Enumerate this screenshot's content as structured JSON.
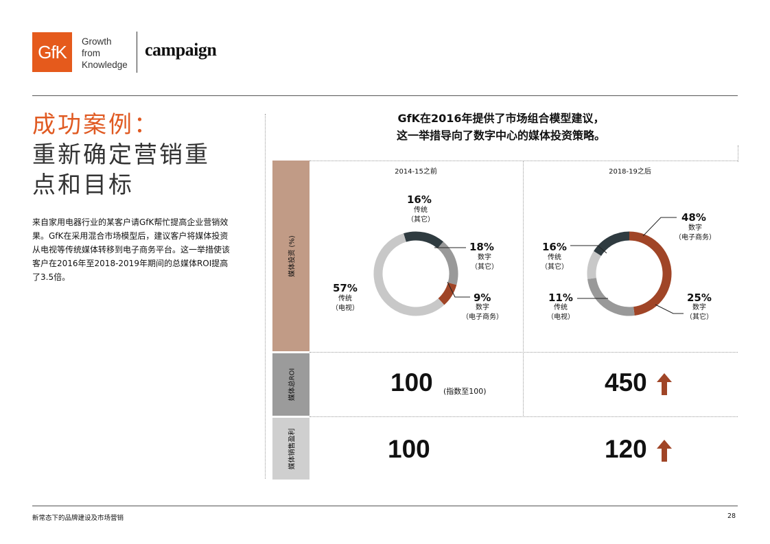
{
  "header": {
    "gfk_logo_text": "GfK",
    "tagline_1": "Growth",
    "tagline_2": "from",
    "tagline_3": "Knowledge",
    "campaign": "campaign"
  },
  "title": {
    "line1": "成功案例：",
    "line2": "重新确定营销重",
    "line3": "点和目标"
  },
  "body_text": "来自家用电器行业的某客户请GfK帮忙提高企业营销效果。GfK在采用混合市场模型后，建议客户将媒体投资从电视等传统媒体转移到电子商务平台。这一举措使该客户在2016年至2018-2019年期间的总媒体ROI提高了3.5倍。",
  "chart_heading": {
    "line1": "GfK在2016年提供了市场组合模型建议，",
    "line2": "这一举措导向了数字中心的媒体投资策略。"
  },
  "row_labels": {
    "r1": "媒体投资 (%)",
    "r2": "媒体总ROI",
    "r3": "媒体销售盈利"
  },
  "colors": {
    "orange": "#e05a22",
    "dark": "#2f3b40",
    "mid_gray": "#999999",
    "light_gray": "#c8c8c8",
    "rust": "#a04527"
  },
  "chart_data": [
    {
      "type": "pie",
      "title": "2014-15之前",
      "slices": [
        {
          "value": 16,
          "pct_label": "16%",
          "l1": "传统",
          "l2": "（其它）",
          "color": "#2f3b40"
        },
        {
          "value": 18,
          "pct_label": "18%",
          "l1": "数字",
          "l2": "（其它）",
          "color": "#999999"
        },
        {
          "value": 9,
          "pct_label": "9%",
          "l1": "数字",
          "l2": "（电子商务）",
          "color": "#a04527"
        },
        {
          "value": 57,
          "pct_label": "57%",
          "l1": "传统",
          "l2": "（电视）",
          "color": "#c8c8c8"
        }
      ]
    },
    {
      "type": "pie",
      "title": "2018-19之后",
      "slices": [
        {
          "value": 48,
          "pct_label": "48%",
          "l1": "数字",
          "l2": "（电子商务）",
          "color": "#a04527"
        },
        {
          "value": 25,
          "pct_label": "25%",
          "l1": "数字",
          "l2": "（其它）",
          "color": "#999999"
        },
        {
          "value": 11,
          "pct_label": "11%",
          "l1": "传统",
          "l2": "（电视）",
          "color": "#c8c8c8"
        },
        {
          "value": 16,
          "pct_label": "16%",
          "l1": "传统",
          "l2": "（其它）",
          "color": "#2f3b40"
        }
      ]
    }
  ],
  "roi": {
    "before": "100",
    "before_note": "(指数至100)",
    "after": "450"
  },
  "profit": {
    "before": "100",
    "after": "120"
  },
  "footer": {
    "left": "新常态下的品牌建设及市场营销",
    "page": "28"
  }
}
